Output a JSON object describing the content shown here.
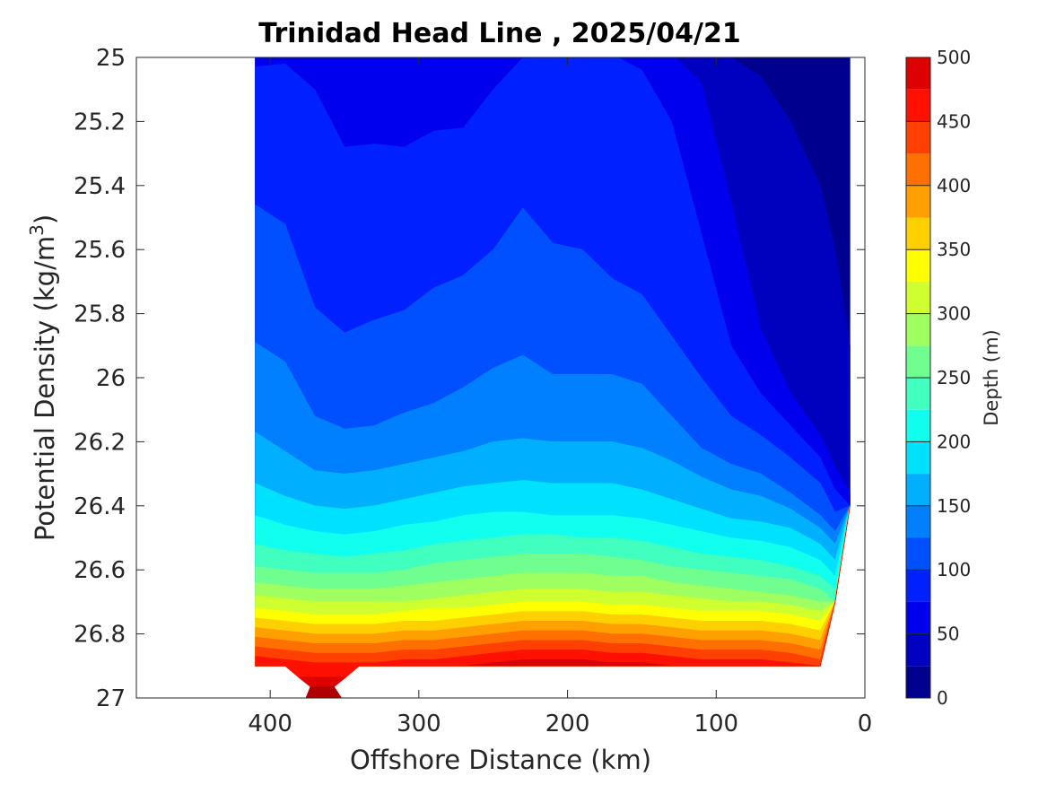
{
  "chart_data": {
    "type": "contour",
    "title": "Trinidad Head Line , 2025/04/21",
    "xlabel": "Offshore Distance (km)",
    "ylabel_main": "Potential Density (kg/m",
    "ylabel_sup": "3",
    "ylabel_close": ")",
    "xlim": [
      490,
      0
    ],
    "ylim": [
      25,
      27
    ],
    "x_ticks": [
      400,
      300,
      200,
      100,
      0
    ],
    "x_tick_labels": [
      "400",
      "300",
      "200",
      "100",
      "0"
    ],
    "y_ticks": [
      25,
      25.2,
      25.4,
      25.6,
      25.8,
      26,
      26.2,
      26.4,
      26.6,
      26.8,
      27
    ],
    "y_tick_labels": [
      "25",
      "25.2",
      "25.4",
      "25.6",
      "25.8",
      "26",
      "26.2",
      "26.4",
      "26.6",
      "26.8",
      "27"
    ],
    "colorbar": {
      "label": "Depth (m)",
      "range": [
        0,
        500
      ],
      "ticks": [
        0,
        50,
        100,
        150,
        200,
        250,
        300,
        350,
        400,
        450,
        500
      ],
      "tick_labels": [
        "0",
        "50",
        "100",
        "150",
        "200",
        "250",
        "300",
        "350",
        "400",
        "450",
        "500"
      ],
      "levels": [
        0,
        25,
        50,
        75,
        100,
        125,
        150,
        175,
        200,
        225,
        250,
        275,
        300,
        325,
        350,
        375,
        400,
        425,
        450,
        475,
        500
      ],
      "colors": [
        "#00008f",
        "#0000bf",
        "#0000ef",
        "#0020ff",
        "#0050ff",
        "#0080ff",
        "#00b0ff",
        "#00e0ff",
        "#10ffef",
        "#40ffbf",
        "#70ff8f",
        "#a0ff60",
        "#d0ff30",
        "#ffff00",
        "#ffd000",
        "#ffa000",
        "#ff7000",
        "#ff4000",
        "#ff1000",
        "#df0000",
        "#af0000"
      ]
    },
    "distance_km": [
      410,
      390,
      370,
      350,
      330,
      310,
      290,
      270,
      250,
      230,
      210,
      190,
      170,
      150,
      130,
      110,
      90,
      70,
      50,
      30,
      20,
      10
    ],
    "bottom_density": [
      26.9,
      26.9,
      26.9,
      26.9,
      26.9,
      26.9,
      26.9,
      26.9,
      26.9,
      26.9,
      26.9,
      26.9,
      26.9,
      26.9,
      26.9,
      26.9,
      26.9,
      26.9,
      26.9,
      26.9,
      26.7,
      26.4
    ],
    "isopycnal_depth_contours": [
      {
        "level": 25,
        "density": [
          24.99,
          24.99,
          24.99,
          24.99,
          24.99,
          24.99,
          24.99,
          24.99,
          24.99,
          24.99,
          24.99,
          24.99,
          24.99,
          24.99,
          24.99,
          24.99,
          25.0,
          25.06,
          25.2,
          25.4,
          25.6,
          25.9
        ]
      },
      {
        "level": 50,
        "density": [
          24.99,
          24.99,
          24.99,
          24.99,
          24.99,
          24.99,
          24.99,
          24.99,
          24.99,
          24.99,
          24.99,
          24.99,
          24.99,
          24.99,
          24.99,
          25.08,
          25.45,
          25.85,
          26.05,
          26.18,
          26.28,
          26.36
        ]
      },
      {
        "level": 75,
        "density": [
          25.03,
          25.02,
          25.1,
          25.28,
          25.27,
          25.28,
          25.23,
          25.22,
          25.1,
          25.0,
          25.0,
          24.99,
          24.99,
          25.04,
          25.2,
          25.55,
          25.9,
          26.05,
          26.15,
          26.25,
          26.35,
          26.4
        ]
      },
      {
        "level": 100,
        "density": [
          25.46,
          25.52,
          25.78,
          25.86,
          25.82,
          25.79,
          25.72,
          25.68,
          25.6,
          25.47,
          25.58,
          25.6,
          25.69,
          25.74,
          25.87,
          26.0,
          26.12,
          26.18,
          26.25,
          26.33,
          26.42,
          26.45
        ]
      },
      {
        "level": 125,
        "density": [
          25.89,
          25.95,
          26.12,
          26.16,
          26.15,
          26.11,
          26.08,
          26.03,
          25.97,
          25.93,
          25.99,
          25.99,
          25.99,
          26.02,
          26.12,
          26.22,
          26.27,
          26.3,
          26.36,
          26.43,
          26.48,
          26.5
        ]
      },
      {
        "level": 150,
        "density": [
          26.17,
          26.23,
          26.29,
          26.3,
          26.29,
          26.27,
          26.25,
          26.23,
          26.2,
          26.19,
          26.2,
          26.2,
          26.2,
          26.22,
          26.26,
          26.31,
          26.35,
          26.37,
          26.41,
          26.47,
          26.52,
          26.54
        ]
      },
      {
        "level": 175,
        "density": [
          26.33,
          26.37,
          26.4,
          26.41,
          26.4,
          26.38,
          26.36,
          26.34,
          26.33,
          26.32,
          26.33,
          26.33,
          26.33,
          26.35,
          26.38,
          26.41,
          26.44,
          26.45,
          26.47,
          26.52,
          26.57,
          26.6
        ]
      },
      {
        "level": 200,
        "density": [
          26.43,
          26.46,
          26.48,
          26.49,
          26.48,
          26.46,
          26.45,
          26.43,
          26.42,
          26.42,
          26.43,
          26.43,
          26.43,
          26.44,
          26.46,
          26.48,
          26.5,
          26.51,
          26.53,
          26.57,
          26.62,
          26.65
        ]
      },
      {
        "level": 225,
        "density": [
          26.52,
          26.54,
          26.55,
          26.56,
          26.55,
          26.54,
          26.52,
          26.51,
          26.5,
          26.49,
          26.49,
          26.5,
          26.5,
          26.51,
          26.53,
          26.55,
          26.56,
          26.57,
          26.59,
          26.62,
          26.66,
          26.69
        ]
      },
      {
        "level": 250,
        "density": [
          26.59,
          26.6,
          26.61,
          26.61,
          26.61,
          26.6,
          26.58,
          26.57,
          26.56,
          26.55,
          26.55,
          26.55,
          26.56,
          26.57,
          26.59,
          26.6,
          26.61,
          26.62,
          26.63,
          26.66,
          26.7,
          26.72
        ]
      },
      {
        "level": 275,
        "density": [
          26.64,
          26.65,
          26.66,
          26.66,
          26.66,
          26.65,
          26.64,
          26.63,
          26.62,
          26.61,
          26.61,
          26.61,
          26.62,
          26.62,
          26.64,
          26.65,
          26.66,
          26.67,
          26.68,
          26.7,
          26.73,
          26.75
        ]
      },
      {
        "level": 300,
        "density": [
          26.68,
          26.69,
          26.7,
          26.7,
          26.7,
          26.7,
          26.69,
          26.68,
          26.67,
          26.66,
          26.66,
          26.66,
          26.67,
          26.67,
          26.68,
          26.69,
          26.7,
          26.7,
          26.71,
          26.73,
          26.76,
          26.78
        ]
      },
      {
        "level": 325,
        "density": [
          26.72,
          26.73,
          26.74,
          26.74,
          26.74,
          26.73,
          26.72,
          26.72,
          26.71,
          26.7,
          26.7,
          26.7,
          26.71,
          26.71,
          26.72,
          26.73,
          26.73,
          26.73,
          26.74,
          26.76,
          26.79,
          26.81
        ]
      },
      {
        "level": 350,
        "density": [
          26.75,
          26.76,
          26.77,
          26.77,
          26.77,
          26.76,
          26.76,
          26.75,
          26.74,
          26.73,
          26.73,
          26.73,
          26.74,
          26.74,
          26.75,
          26.76,
          26.76,
          26.76,
          26.77,
          26.79,
          26.82,
          26.84
        ]
      },
      {
        "level": 375,
        "density": [
          26.78,
          26.79,
          26.8,
          26.8,
          26.8,
          26.79,
          26.79,
          26.78,
          26.77,
          26.76,
          26.76,
          26.76,
          26.77,
          26.77,
          26.78,
          26.79,
          26.79,
          26.79,
          26.8,
          26.82,
          26.85,
          26.87
        ]
      },
      {
        "level": 400,
        "density": [
          26.81,
          26.82,
          26.83,
          26.83,
          26.83,
          26.82,
          26.82,
          26.81,
          26.8,
          26.79,
          26.79,
          26.79,
          26.8,
          26.8,
          26.81,
          26.82,
          26.82,
          26.82,
          26.83,
          26.85,
          26.88,
          26.9
        ]
      },
      {
        "level": 425,
        "density": [
          26.84,
          26.85,
          26.86,
          26.86,
          26.86,
          26.85,
          26.85,
          26.84,
          26.83,
          26.82,
          26.82,
          26.82,
          26.83,
          26.83,
          26.84,
          26.85,
          26.85,
          26.85,
          26.86,
          26.88,
          26.9,
          26.91
        ]
      },
      {
        "level": 450,
        "density": [
          26.87,
          26.88,
          26.89,
          26.89,
          26.89,
          26.88,
          26.88,
          26.87,
          26.86,
          26.85,
          26.85,
          26.85,
          26.86,
          26.86,
          26.87,
          26.88,
          26.88,
          26.88,
          26.89,
          26.9,
          26.91,
          26.92
        ]
      },
      {
        "level": 475,
        "density": [
          26.9,
          26.91,
          26.92,
          26.93,
          26.92,
          26.91,
          26.9,
          26.9,
          26.89,
          26.88,
          26.88,
          26.88,
          26.89,
          26.89,
          26.9,
          26.9,
          26.9,
          26.9,
          26.9,
          26.91,
          26.92,
          26.93
        ]
      }
    ],
    "deep_trough_bands": [
      {
        "level": 450,
        "color_index": 18,
        "points_km_density": [
          [
            390,
            26.9
          ],
          [
            340,
            26.9
          ],
          [
            349,
            26.935
          ],
          [
            381,
            26.935
          ]
        ]
      },
      {
        "level": 475,
        "color_index": 19,
        "points_km_density": [
          [
            381,
            26.935
          ],
          [
            349,
            26.935
          ],
          [
            357,
            26.965
          ],
          [
            373,
            26.965
          ]
        ]
      },
      {
        "level": 500,
        "color_index": 20,
        "points_km_density": [
          [
            373,
            26.965
          ],
          [
            357,
            26.965
          ],
          [
            352,
            27.0
          ],
          [
            376,
            27.0
          ]
        ]
      }
    ]
  }
}
